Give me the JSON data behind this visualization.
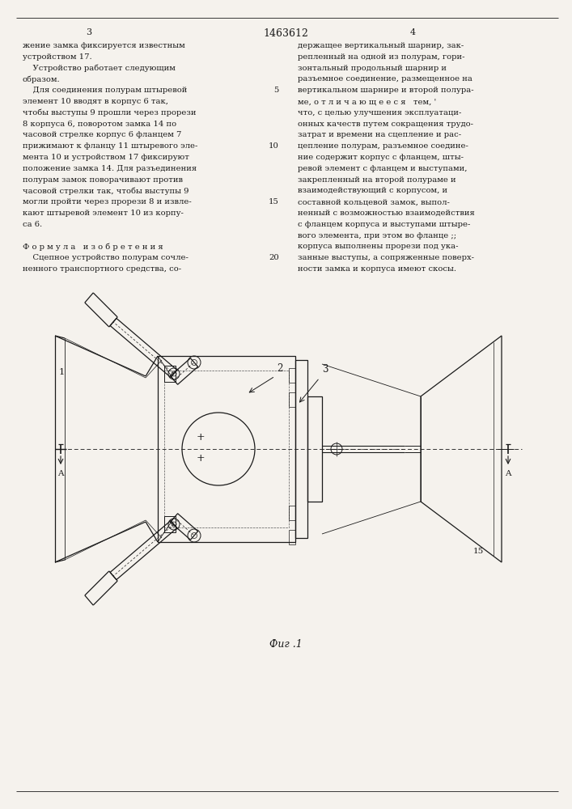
{
  "title": "1463612",
  "bg_color": "#f5f2ed",
  "text_color": "#1a1a1a",
  "fig_label": "Фиг .1",
  "left_col_lines": [
    "жение замка фиксируется известным",
    "устройством 17.",
    "    Устройство работает следующим",
    "образом.",
    "    Для соединения полурам штыревой",
    "элемент 10 вводят в корпус 6 так,",
    "чтобы выступы 9 прошли через прорези",
    "8 корпуса 6, поворотом замка 14 по",
    "часовой стрелке корпус 6 фланцем 7",
    "прижимают к фланцу 11 штыревого эле-",
    "мента 10 и устройством 17 фиксируют",
    "положение замка 14. Для разъединения",
    "полурам замок поворачивают против",
    "часовой стрелки так, чтобы выступы 9",
    "могли пройти через прорези 8 и извле-",
    "кают штыревой элемент 10 из корпу-",
    "са 6.",
    "",
    "Ф о р м у л а   и з о б р е т е н и я",
    "    Сцепное устройство полурам сочле-",
    "ненного транспортного средства, со-"
  ],
  "right_col_lines": [
    "держащее вертикальный шарнир, зак-",
    "репленный на одной из полурам, гори-",
    "зонтальный продольный шарнир и",
    "разъемное соединение, размещенное на",
    "вертикальном шарнире и второй полура-",
    "ме, о т л и ч а ю щ е е с я   тем, '",
    "что, с целью улучшения эксплуатаци-",
    "онных качеств путем сокращения трудо-",
    "затрат и времени на сцепление и рас-",
    "цепление полурам, разъемное соедине-",
    "ние содержит корпус с фланцем, шты-",
    "ревой элемент с фланцем и выступами,",
    "закрепленный на второй полураме и",
    "взаимодействующий с корпусом, и",
    "составной кольцевой замок, выпол-",
    "ненный с возможностью взаимодействия",
    "с фланцем корпуса и выступами штыре-",
    "вого элемента, при этом во фланце ;;",
    "корпуса выполнены прорези под ука-",
    "занные выступы, а сопряженные поверх-",
    "ности замка и корпуса имеют скосы."
  ]
}
